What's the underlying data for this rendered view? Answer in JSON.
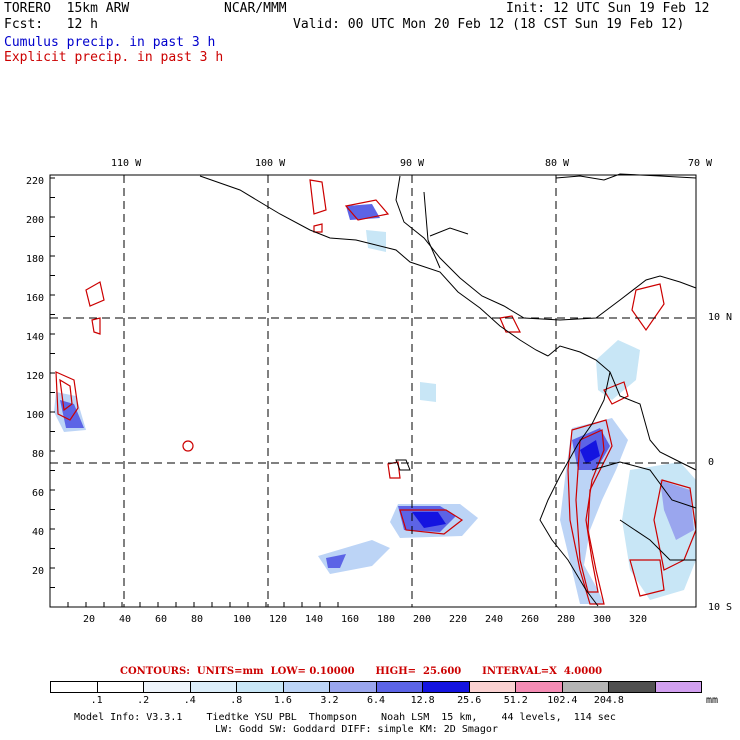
{
  "header": {
    "model": "TORERO  15km ARW",
    "center": "NCAR/MMM",
    "init": "Init: 12 UTC Sun 19 Feb 12",
    "fcst": "Fcst:   12 h",
    "valid": "Valid: 00 UTC Mon 20 Feb 12 (18 CST Sun 19 Feb 12)",
    "legend_cumulus": "Cumulus precip. in past 3 h",
    "legend_explicit": "Explicit precip. in past 3 h"
  },
  "map": {
    "lon_labels": [
      "110 W",
      "100 W",
      "90 W",
      "80 W",
      "70 W"
    ],
    "lat_labels": [
      "10 N",
      "0",
      "10 S"
    ],
    "y_ticks": [
      "220",
      "200",
      "180",
      "160",
      "140",
      "120",
      "100",
      "80",
      "60",
      "40",
      "20"
    ],
    "x_ticks": [
      "20",
      "40",
      "60",
      "80",
      "100",
      "120",
      "140",
      "160",
      "180",
      "200",
      "220",
      "240",
      "260",
      "280",
      "300",
      "320"
    ]
  },
  "contours": {
    "text": "CONTOURS:  UNITS=mm  LOW= 0.10000      HIGH=  25.600      INTERVAL=X  4.0000"
  },
  "colorbar": {
    "values": [
      ".1",
      ".2",
      ".4",
      ".8",
      "1.6",
      "3.2",
      "6.4",
      "12.8",
      "25.6",
      "51.2",
      "102.4",
      "204.8"
    ],
    "unit": "mm",
    "colors": [
      "#ffffff",
      "#ffffff",
      "#eef4fb",
      "#dceefa",
      "#c8e6f6",
      "#bcd4f6",
      "#9aa6ee",
      "#5c64e6",
      "#1414e0",
      "#fad2d2",
      "#f48cb4",
      "#b4b4b4",
      "#505050",
      "#d2a0f0"
    ]
  },
  "model_info": {
    "line1": "Model Info: V3.3.1    Tiedtke YSU PBL  Thompson    Noah LSM  15 km,    44 levels,  114 sec",
    "line2": "LW: Godd SW: Goddard DIFF: simple KM: 2D Smagor"
  }
}
